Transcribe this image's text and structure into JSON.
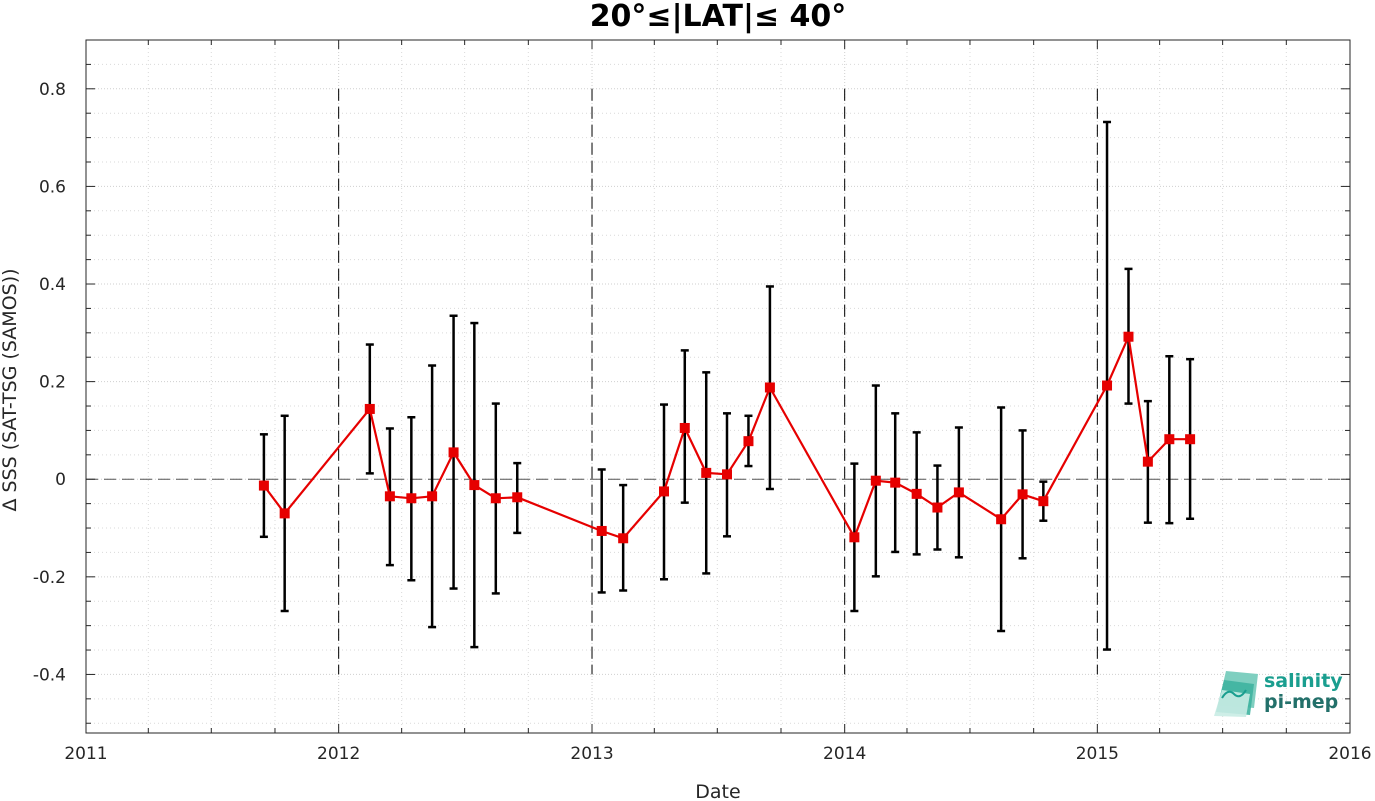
{
  "chart_data": {
    "type": "line",
    "title": "20°≤|LAT|≤ 40°",
    "xlabel": "Date",
    "ylabel": "Δ SSS (SAT-TSG (SAMOS))",
    "xlim": [
      "2011-01-01",
      "2016-01-01"
    ],
    "ylim": [
      -0.52,
      0.9
    ],
    "x_ticks": [
      "2011",
      "2012",
      "2013",
      "2014",
      "2015",
      "2016"
    ],
    "y_ticks": [
      -0.4,
      -0.2,
      0,
      0.2,
      0.4,
      0.6,
      0.8
    ],
    "y_tick_labels": [
      "-0.4",
      "-0.2",
      "0",
      "0.2",
      "0.4",
      "0.6",
      "0.8"
    ],
    "grid": true,
    "zero_line": true,
    "year_boundaries": [
      "2012",
      "2013",
      "2014",
      "2015"
    ],
    "colors": {
      "series": "#e60000",
      "errorbar": "#000000",
      "grid": "#d9d9d9",
      "brand": "#1a9e8f"
    },
    "series": [
      {
        "marker": "square",
        "points": [
          {
            "date": "2011-09-15",
            "y": -0.013,
            "ymin": -0.118,
            "ymax": 0.092
          },
          {
            "date": "2011-10-15",
            "y": -0.07,
            "ymin": -0.27,
            "ymax": 0.13
          },
          {
            "date": "2012-02-15",
            "y": 0.144,
            "ymin": 0.012,
            "ymax": 0.276
          },
          {
            "date": "2012-03-15",
            "y": -0.035,
            "ymin": -0.176,
            "ymax": 0.104
          },
          {
            "date": "2012-04-15",
            "y": -0.039,
            "ymin": -0.207,
            "ymax": 0.127
          },
          {
            "date": "2012-05-15",
            "y": -0.035,
            "ymin": -0.303,
            "ymax": 0.233
          },
          {
            "date": "2012-06-15",
            "y": 0.055,
            "ymin": -0.224,
            "ymax": 0.335
          },
          {
            "date": "2012-07-15",
            "y": -0.012,
            "ymin": -0.344,
            "ymax": 0.32
          },
          {
            "date": "2012-08-15",
            "y": -0.039,
            "ymin": -0.234,
            "ymax": 0.155
          },
          {
            "date": "2012-09-15",
            "y": -0.037,
            "ymin": -0.11,
            "ymax": 0.033
          },
          {
            "date": "2013-01-15",
            "y": -0.106,
            "ymin": -0.232,
            "ymax": 0.02
          },
          {
            "date": "2013-02-15",
            "y": -0.121,
            "ymin": -0.228,
            "ymax": -0.012
          },
          {
            "date": "2013-04-15",
            "y": -0.025,
            "ymin": -0.205,
            "ymax": 0.153
          },
          {
            "date": "2013-05-15",
            "y": 0.105,
            "ymin": -0.048,
            "ymax": 0.264
          },
          {
            "date": "2013-06-15",
            "y": 0.013,
            "ymin": -0.193,
            "ymax": 0.219
          },
          {
            "date": "2013-07-15",
            "y": 0.01,
            "ymin": -0.117,
            "ymax": 0.135
          },
          {
            "date": "2013-08-15",
            "y": 0.078,
            "ymin": 0.027,
            "ymax": 0.13
          },
          {
            "date": "2013-09-15",
            "y": 0.188,
            "ymin": -0.02,
            "ymax": 0.395
          },
          {
            "date": "2014-01-15",
            "y": -0.119,
            "ymin": -0.27,
            "ymax": 0.032
          },
          {
            "date": "2014-02-15",
            "y": -0.003,
            "ymin": -0.199,
            "ymax": 0.192
          },
          {
            "date": "2014-03-15",
            "y": -0.007,
            "ymin": -0.149,
            "ymax": 0.135
          },
          {
            "date": "2014-04-15",
            "y": -0.03,
            "ymin": -0.154,
            "ymax": 0.096
          },
          {
            "date": "2014-05-15",
            "y": -0.058,
            "ymin": -0.144,
            "ymax": 0.028
          },
          {
            "date": "2014-06-15",
            "y": -0.027,
            "ymin": -0.16,
            "ymax": 0.106
          },
          {
            "date": "2014-08-15",
            "y": -0.082,
            "ymin": -0.311,
            "ymax": 0.147
          },
          {
            "date": "2014-09-15",
            "y": -0.031,
            "ymin": -0.162,
            "ymax": 0.1
          },
          {
            "date": "2014-10-15",
            "y": -0.045,
            "ymin": -0.085,
            "ymax": -0.005
          },
          {
            "date": "2015-01-15",
            "y": 0.192,
            "ymin": -0.349,
            "ymax": 0.732
          },
          {
            "date": "2015-02-15",
            "y": 0.292,
            "ymin": 0.155,
            "ymax": 0.431
          },
          {
            "date": "2015-03-15",
            "y": 0.036,
            "ymin": -0.089,
            "ymax": 0.16
          },
          {
            "date": "2015-04-15",
            "y": 0.082,
            "ymin": -0.09,
            "ymax": 0.252
          },
          {
            "date": "2015-05-15",
            "y": 0.082,
            "ymin": -0.081,
            "ymax": 0.246
          }
        ]
      }
    ]
  },
  "logo": {
    "line1": "salinity",
    "line2": "pi-mep"
  }
}
